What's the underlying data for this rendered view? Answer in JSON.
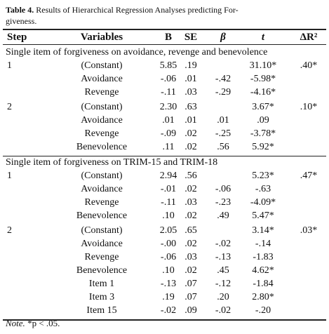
{
  "caption": {
    "label": "Table 4.",
    "lines": [
      "Results of Hierarchical Regression Analyses predicting For-",
      "giveness."
    ]
  },
  "table": {
    "headers": [
      "Step",
      "Variables",
      "B",
      "SE",
      "β",
      "t",
      "ΔR²"
    ],
    "sections": [
      {
        "title": "Single item of forgiveness on avoidance, revenge and benevolence",
        "rows": [
          [
            "1",
            "(Constant)",
            "5.85",
            ".19",
            null,
            "31.10*",
            ".40*"
          ],
          [
            null,
            "Avoidance",
            "-.06",
            ".01",
            "-.42",
            "-5.98*",
            null
          ],
          [
            null,
            "Revenge",
            "-.11",
            ".03",
            "-.29",
            "-4.16*",
            null
          ],
          [
            "2",
            "(Constant)",
            "2.30",
            ".63",
            null,
            "3.67*",
            ".10*"
          ],
          [
            null,
            "Avoidance",
            ".01",
            ".01",
            ".01",
            ".09",
            null
          ],
          [
            null,
            "Revenge",
            "-.09",
            ".02",
            "-.25",
            "-3.78*",
            null
          ],
          [
            null,
            "Benevolence",
            ".11",
            ".02",
            ".56",
            "5.92*",
            null
          ]
        ]
      },
      {
        "title": "Single item of forgiveness on TRIM-15 and TRIM-18",
        "rows": [
          [
            "1",
            "(Constant)",
            "2.94",
            ".56",
            null,
            "5.23*",
            ".47*"
          ],
          [
            null,
            "Avoidance",
            "-.01",
            ".02",
            "-.06",
            "-.63",
            null
          ],
          [
            null,
            "Revenge",
            "-.11",
            ".03",
            "-.23",
            "-4.09*",
            null
          ],
          [
            null,
            "Benevolence",
            ".10",
            ".02",
            ".49",
            "5.47*",
            null
          ],
          [
            "2",
            "(Constant)",
            "2.05",
            ".65",
            null,
            "3.14*",
            ".03*"
          ],
          [
            null,
            "Avoidance",
            "-.00",
            ".02",
            "-.02",
            "-.14",
            null
          ],
          [
            null,
            "Revenge",
            "-.06",
            ".03",
            "-.13",
            "-1.83",
            null
          ],
          [
            null,
            "Benevolence",
            ".10",
            ".02",
            ".45",
            "4.62*",
            null
          ],
          [
            null,
            "Item 1",
            "-.13",
            ".07",
            "-.12",
            "-1.84",
            null
          ],
          [
            null,
            "Item 3",
            ".19",
            ".07",
            ".20",
            "2.80*",
            null
          ],
          [
            null,
            "Item 15",
            "-.02",
            ".09",
            "-.02",
            "-.20",
            null
          ]
        ]
      }
    ]
  },
  "note": {
    "label": "Note.",
    "text": "*p < .05."
  }
}
